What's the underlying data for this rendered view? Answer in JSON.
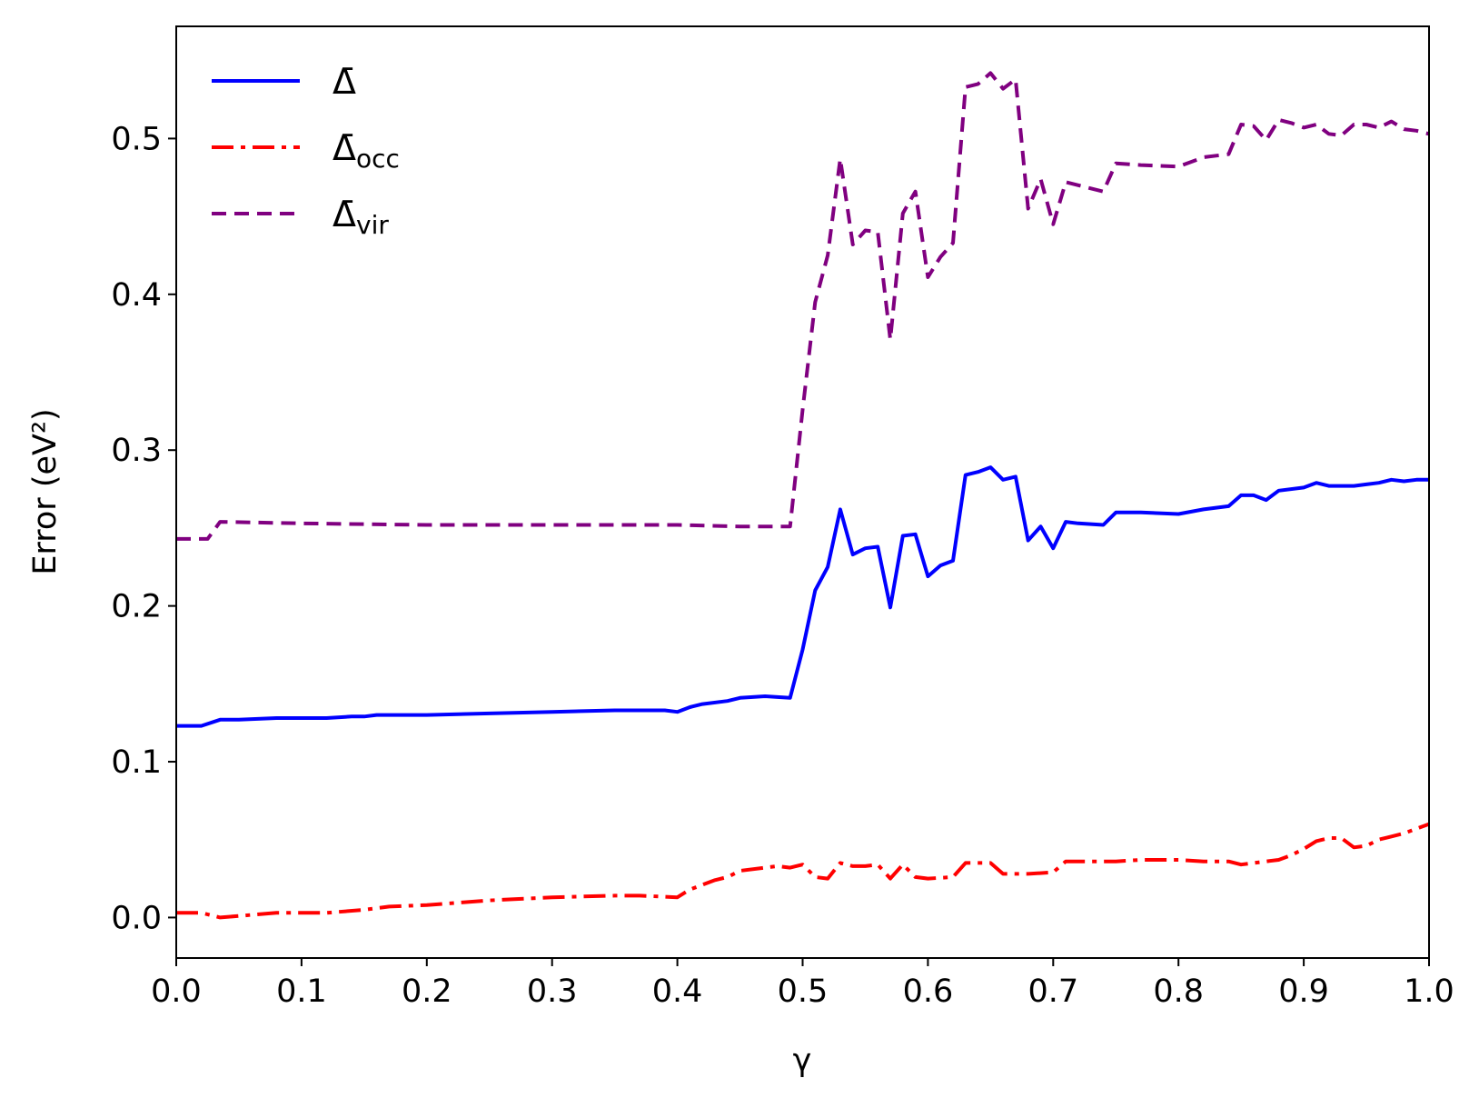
{
  "chart_data": {
    "type": "line",
    "title": "",
    "xlabel": "γ",
    "ylabel": "Error (eV²)",
    "xlim": [
      0.0,
      1.0
    ],
    "ylim": [
      -0.026,
      0.572
    ],
    "xticks": [
      "0.0",
      "0.1",
      "0.2",
      "0.3",
      "0.4",
      "0.5",
      "0.6",
      "0.7",
      "0.8",
      "0.9",
      "1.0"
    ],
    "yticks": [
      "0.0",
      "0.1",
      "0.2",
      "0.3",
      "0.4",
      "0.5"
    ],
    "grid": false,
    "legend": {
      "placement": "top-left",
      "entries": [
        {
          "main": "Δ̄",
          "sub": ""
        },
        {
          "main": "Δ̄",
          "sub": "occ"
        },
        {
          "main": "Δ̄",
          "sub": "vir"
        }
      ]
    },
    "series": [
      {
        "color": "#0000ff",
        "style": "solid",
        "points": [
          [
            0.0,
            0.123
          ],
          [
            0.02,
            0.123
          ],
          [
            0.035,
            0.127
          ],
          [
            0.05,
            0.127
          ],
          [
            0.08,
            0.128
          ],
          [
            0.1,
            0.128
          ],
          [
            0.12,
            0.128
          ],
          [
            0.14,
            0.129
          ],
          [
            0.15,
            0.129
          ],
          [
            0.16,
            0.13
          ],
          [
            0.18,
            0.13
          ],
          [
            0.2,
            0.13
          ],
          [
            0.25,
            0.131
          ],
          [
            0.3,
            0.132
          ],
          [
            0.35,
            0.133
          ],
          [
            0.38,
            0.133
          ],
          [
            0.39,
            0.133
          ],
          [
            0.4,
            0.132
          ],
          [
            0.41,
            0.135
          ],
          [
            0.42,
            0.137
          ],
          [
            0.44,
            0.139
          ],
          [
            0.45,
            0.141
          ],
          [
            0.47,
            0.142
          ],
          [
            0.49,
            0.141
          ],
          [
            0.5,
            0.172
          ],
          [
            0.51,
            0.21
          ],
          [
            0.52,
            0.225
          ],
          [
            0.53,
            0.262
          ],
          [
            0.54,
            0.233
          ],
          [
            0.55,
            0.237
          ],
          [
            0.56,
            0.238
          ],
          [
            0.57,
            0.199
          ],
          [
            0.58,
            0.245
          ],
          [
            0.59,
            0.246
          ],
          [
            0.6,
            0.219
          ],
          [
            0.61,
            0.226
          ],
          [
            0.62,
            0.229
          ],
          [
            0.63,
            0.284
          ],
          [
            0.64,
            0.286
          ],
          [
            0.65,
            0.289
          ],
          [
            0.66,
            0.281
          ],
          [
            0.67,
            0.283
          ],
          [
            0.68,
            0.242
          ],
          [
            0.69,
            0.251
          ],
          [
            0.7,
            0.237
          ],
          [
            0.71,
            0.254
          ],
          [
            0.72,
            0.253
          ],
          [
            0.74,
            0.252
          ],
          [
            0.75,
            0.26
          ],
          [
            0.77,
            0.26
          ],
          [
            0.8,
            0.259
          ],
          [
            0.82,
            0.262
          ],
          [
            0.84,
            0.264
          ],
          [
            0.85,
            0.271
          ],
          [
            0.86,
            0.271
          ],
          [
            0.87,
            0.268
          ],
          [
            0.88,
            0.274
          ],
          [
            0.9,
            0.276
          ],
          [
            0.91,
            0.279
          ],
          [
            0.92,
            0.277
          ],
          [
            0.94,
            0.277
          ],
          [
            0.95,
            0.278
          ],
          [
            0.96,
            0.279
          ],
          [
            0.97,
            0.281
          ],
          [
            0.98,
            0.28
          ],
          [
            0.99,
            0.281
          ],
          [
            1.0,
            0.281
          ]
        ]
      },
      {
        "color": "#ff0000",
        "style": "dashdot",
        "points": [
          [
            0.0,
            0.003
          ],
          [
            0.02,
            0.003
          ],
          [
            0.035,
            0.0
          ],
          [
            0.05,
            0.001
          ],
          [
            0.08,
            0.003
          ],
          [
            0.1,
            0.003
          ],
          [
            0.12,
            0.003
          ],
          [
            0.15,
            0.005
          ],
          [
            0.17,
            0.007
          ],
          [
            0.2,
            0.008
          ],
          [
            0.25,
            0.011
          ],
          [
            0.3,
            0.013
          ],
          [
            0.35,
            0.014
          ],
          [
            0.37,
            0.014
          ],
          [
            0.4,
            0.013
          ],
          [
            0.41,
            0.018
          ],
          [
            0.43,
            0.024
          ],
          [
            0.44,
            0.026
          ],
          [
            0.45,
            0.03
          ],
          [
            0.47,
            0.032
          ],
          [
            0.48,
            0.033
          ],
          [
            0.49,
            0.032
          ],
          [
            0.5,
            0.034
          ],
          [
            0.51,
            0.026
          ],
          [
            0.52,
            0.025
          ],
          [
            0.53,
            0.035
          ],
          [
            0.54,
            0.033
          ],
          [
            0.55,
            0.033
          ],
          [
            0.56,
            0.034
          ],
          [
            0.57,
            0.025
          ],
          [
            0.58,
            0.034
          ],
          [
            0.59,
            0.026
          ],
          [
            0.6,
            0.025
          ],
          [
            0.62,
            0.026
          ],
          [
            0.63,
            0.035
          ],
          [
            0.65,
            0.035
          ],
          [
            0.66,
            0.028
          ],
          [
            0.68,
            0.028
          ],
          [
            0.7,
            0.029
          ],
          [
            0.71,
            0.036
          ],
          [
            0.75,
            0.036
          ],
          [
            0.77,
            0.037
          ],
          [
            0.8,
            0.037
          ],
          [
            0.82,
            0.036
          ],
          [
            0.84,
            0.036
          ],
          [
            0.85,
            0.034
          ],
          [
            0.86,
            0.035
          ],
          [
            0.88,
            0.037
          ],
          [
            0.89,
            0.04
          ],
          [
            0.9,
            0.044
          ],
          [
            0.91,
            0.049
          ],
          [
            0.92,
            0.051
          ],
          [
            0.93,
            0.051
          ],
          [
            0.94,
            0.045
          ],
          [
            0.95,
            0.046
          ],
          [
            0.96,
            0.05
          ],
          [
            0.97,
            0.052
          ],
          [
            0.98,
            0.054
          ],
          [
            0.99,
            0.057
          ],
          [
            1.0,
            0.06
          ]
        ]
      },
      {
        "color": "#800080",
        "style": "dashed",
        "points": [
          [
            0.0,
            0.243
          ],
          [
            0.025,
            0.243
          ],
          [
            0.035,
            0.254
          ],
          [
            0.1,
            0.253
          ],
          [
            0.2,
            0.252
          ],
          [
            0.3,
            0.252
          ],
          [
            0.4,
            0.252
          ],
          [
            0.45,
            0.251
          ],
          [
            0.48,
            0.251
          ],
          [
            0.49,
            0.251
          ],
          [
            0.5,
            0.326
          ],
          [
            0.51,
            0.395
          ],
          [
            0.52,
            0.425
          ],
          [
            0.53,
            0.487
          ],
          [
            0.54,
            0.432
          ],
          [
            0.55,
            0.441
          ],
          [
            0.56,
            0.44
          ],
          [
            0.57,
            0.371
          ],
          [
            0.58,
            0.452
          ],
          [
            0.59,
            0.466
          ],
          [
            0.6,
            0.411
          ],
          [
            0.61,
            0.424
          ],
          [
            0.62,
            0.433
          ],
          [
            0.63,
            0.533
          ],
          [
            0.64,
            0.535
          ],
          [
            0.65,
            0.542
          ],
          [
            0.66,
            0.532
          ],
          [
            0.67,
            0.538
          ],
          [
            0.68,
            0.455
          ],
          [
            0.69,
            0.474
          ],
          [
            0.7,
            0.445
          ],
          [
            0.71,
            0.472
          ],
          [
            0.72,
            0.47
          ],
          [
            0.74,
            0.466
          ],
          [
            0.75,
            0.484
          ],
          [
            0.77,
            0.483
          ],
          [
            0.8,
            0.482
          ],
          [
            0.82,
            0.488
          ],
          [
            0.84,
            0.49
          ],
          [
            0.85,
            0.509
          ],
          [
            0.86,
            0.508
          ],
          [
            0.87,
            0.499
          ],
          [
            0.88,
            0.512
          ],
          [
            0.89,
            0.51
          ],
          [
            0.9,
            0.507
          ],
          [
            0.91,
            0.509
          ],
          [
            0.92,
            0.503
          ],
          [
            0.93,
            0.502
          ],
          [
            0.94,
            0.509
          ],
          [
            0.95,
            0.509
          ],
          [
            0.96,
            0.507
          ],
          [
            0.97,
            0.511
          ],
          [
            0.98,
            0.506
          ],
          [
            0.99,
            0.505
          ],
          [
            1.0,
            0.503
          ]
        ]
      }
    ]
  }
}
